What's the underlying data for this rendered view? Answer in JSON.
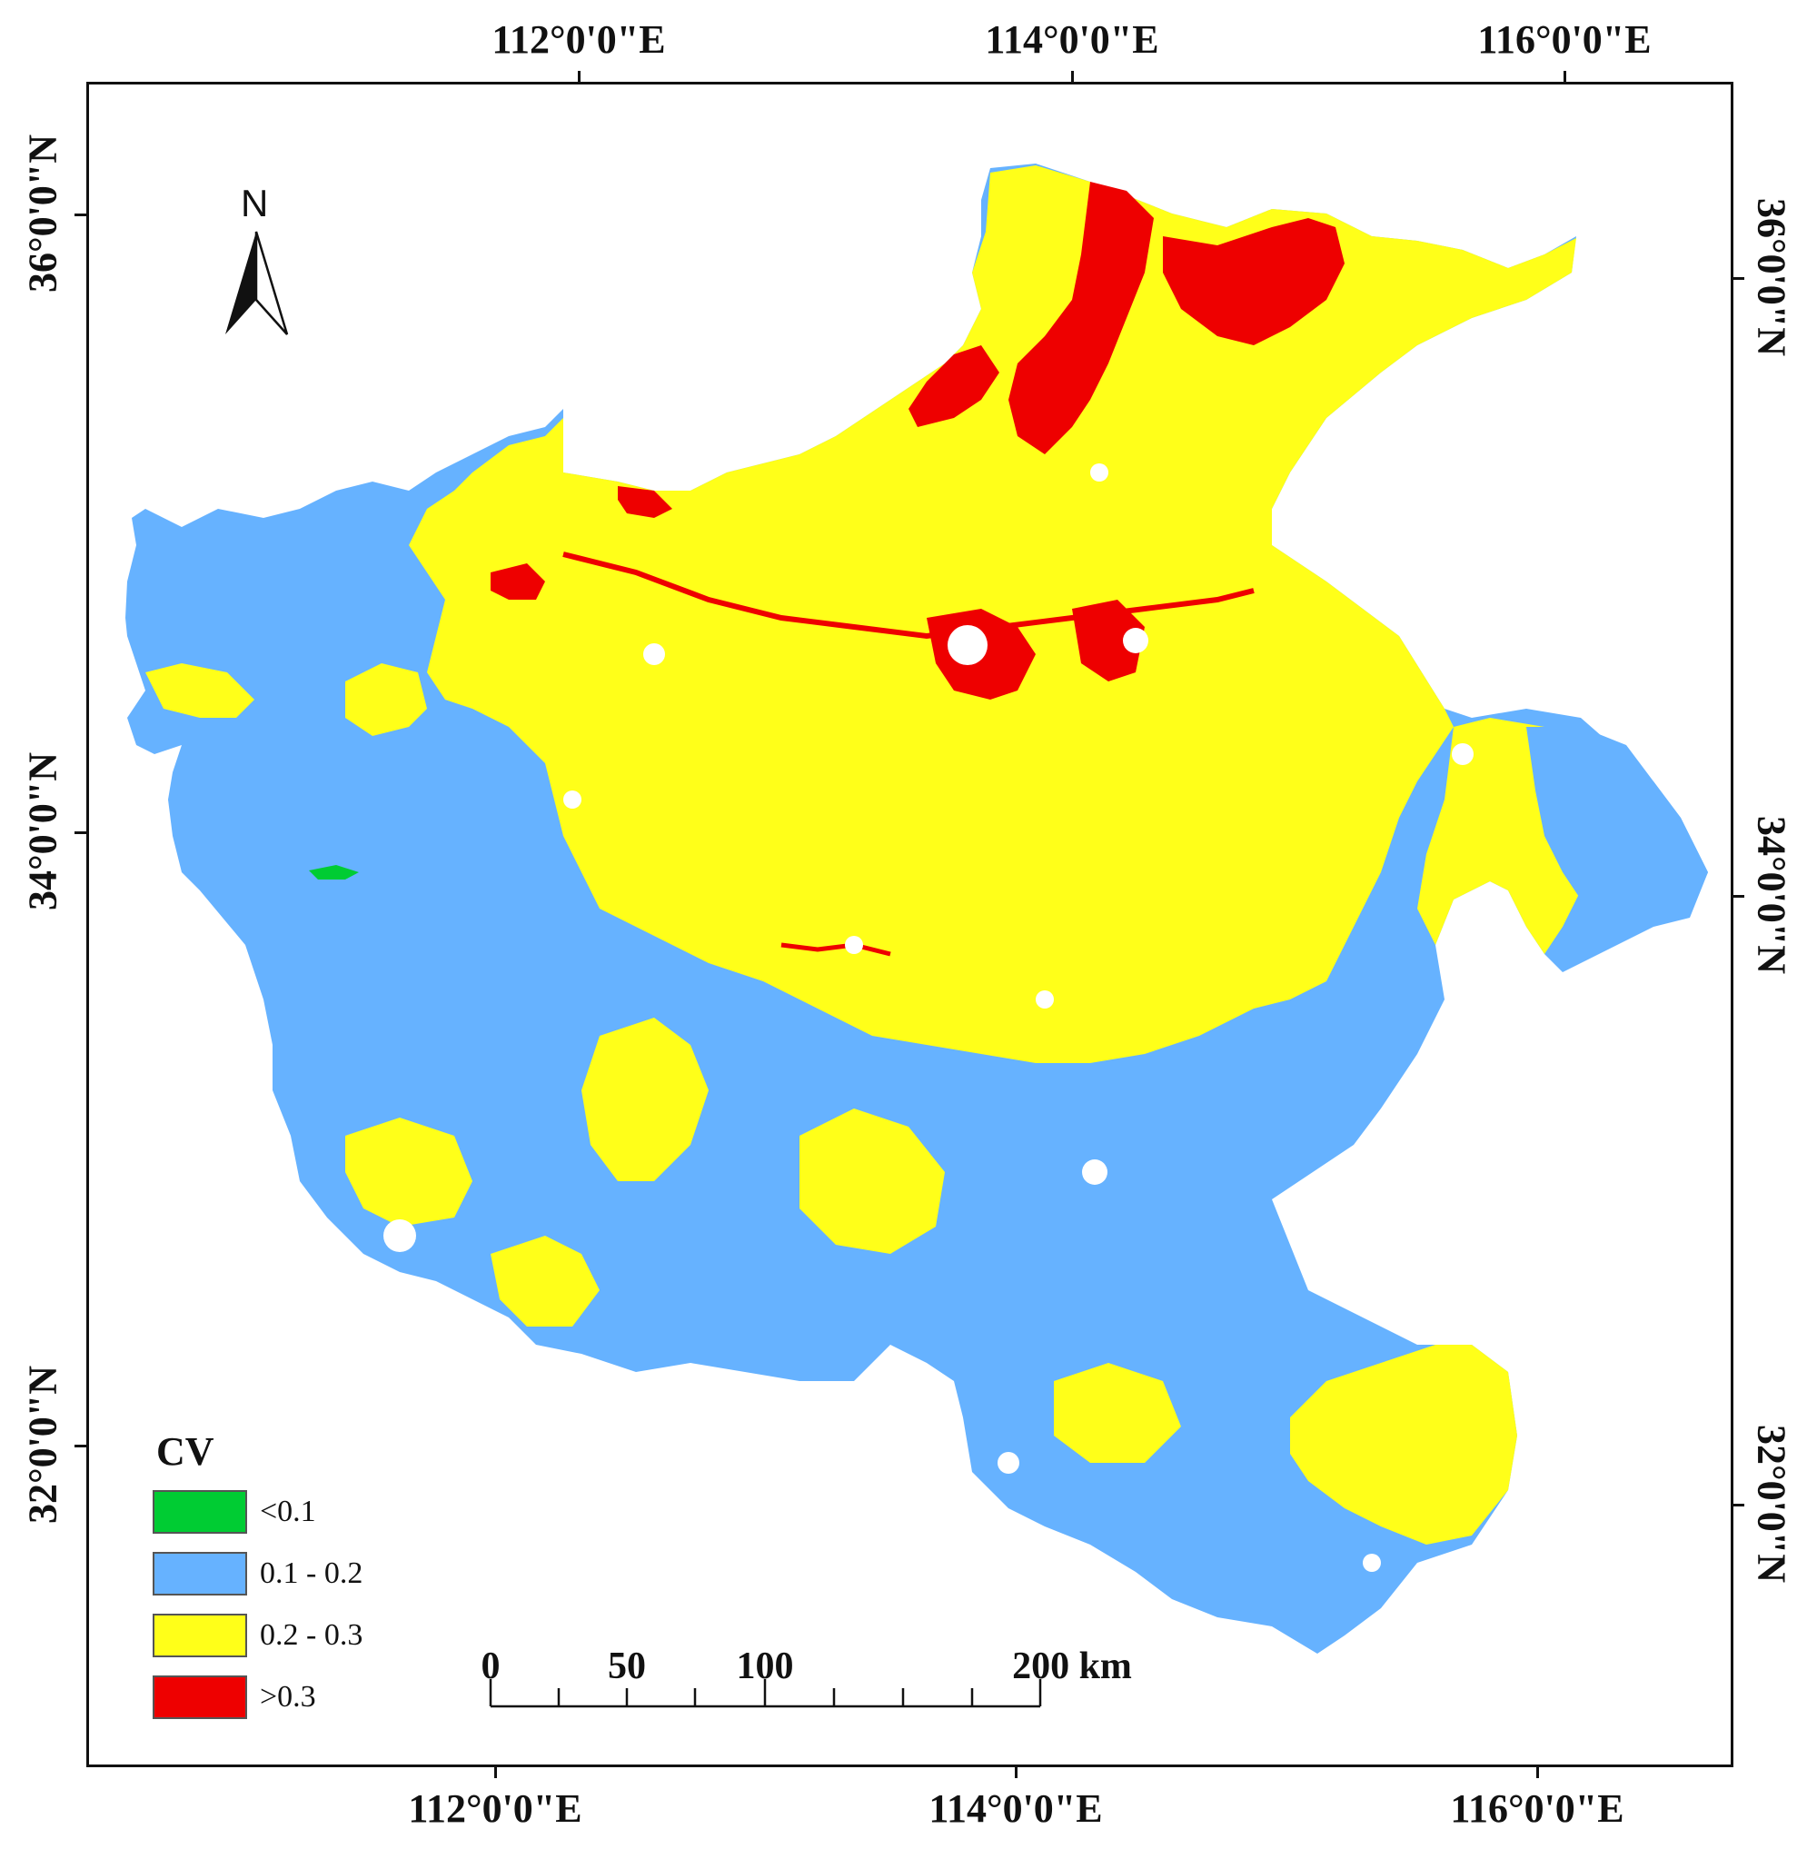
{
  "map": {
    "top_labels": [
      "112°0'0\"E",
      "114°0'0\"E",
      "116°0'0\"E"
    ],
    "bottom_labels": [
      "112°0'0\"E",
      "114°0'0\"E",
      "116°0'0\"E"
    ],
    "left_labels": [
      "36°0'0\"N",
      "34°0'0\"N",
      "32°0'0\"N"
    ],
    "right_labels": [
      "36°0'0\"N",
      "34°0'0\"N",
      "32°0'0\"N"
    ],
    "north_label": "N",
    "legend": {
      "title": "CV",
      "items": [
        {
          "label": "<0.1",
          "color": "#00cc33"
        },
        {
          "label": "0.1 - 0.2",
          "color": "#66b2ff"
        },
        {
          "label": "0.2 - 0.3",
          "color": "#ffff19"
        },
        {
          "label": ">0.3",
          "color": "#ee0000"
        }
      ]
    },
    "scale_bar": {
      "labels": [
        "0",
        "50",
        "100",
        "200 km"
      ]
    },
    "colors": {
      "lt01": "#00cc33",
      "c01_02": "#66b2ff",
      "c02_03": "#ffff19",
      "gt03": "#ee0000",
      "nodata": "#ffffff"
    }
  }
}
